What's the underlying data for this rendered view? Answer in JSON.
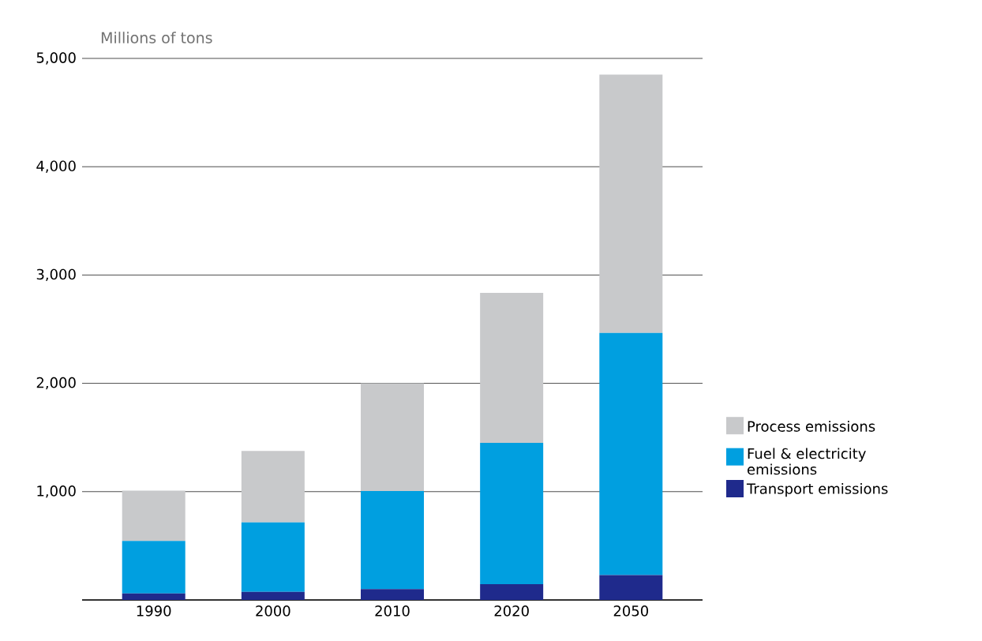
{
  "chart_data": {
    "type": "bar",
    "stacked": true,
    "ylabel": "Millions of tons",
    "categories": [
      "1990",
      "2000",
      "2010",
      "2020",
      "2050"
    ],
    "series": [
      {
        "name": "Transport emissions",
        "color": "#1f2a8c",
        "values": [
          60,
          75,
          100,
          145,
          230
        ]
      },
      {
        "name": "Fuel & electricity emissions",
        "color": "#009fe0",
        "values": [
          485,
          640,
          905,
          1305,
          2235
        ]
      },
      {
        "name": "Process emissions",
        "color": "#c8c9cb",
        "values": [
          465,
          660,
          995,
          1385,
          2385
        ]
      }
    ],
    "ylim": [
      0,
      5000
    ],
    "yticks": [
      {
        "value": 0,
        "label": null
      },
      {
        "value": 1000,
        "label": "1,000"
      },
      {
        "value": 2000,
        "label": "2,000"
      },
      {
        "value": 3000,
        "label": "3,000"
      },
      {
        "value": 4000,
        "label": "4,000"
      },
      {
        "value": 5000,
        "label": "5,000"
      }
    ],
    "grid": "y",
    "legend": "right"
  }
}
